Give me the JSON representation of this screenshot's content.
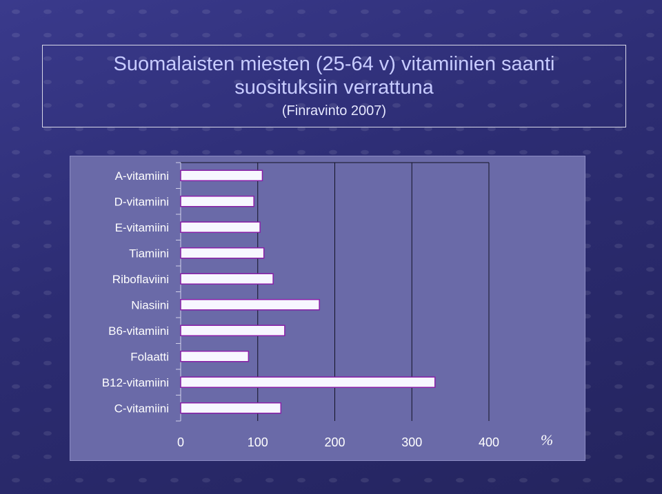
{
  "header": {
    "title_line1": "Suomalaisten miesten (25-64 v) vitamiinien saanti",
    "title_line2": "suosituksiin verrattuna",
    "subtitle": "(Finravinto 2007)"
  },
  "chart_data": {
    "type": "bar",
    "orientation": "horizontal",
    "categories": [
      "A-vitamiini",
      "D-vitamiini",
      "E-vitamiini",
      "Tiamiini",
      "Riboflaviini",
      "Niasiini",
      "B6-vitamiini",
      "Folaatti",
      "B12-vitamiini",
      "C-vitamiini"
    ],
    "values": [
      106,
      95,
      103,
      108,
      120,
      180,
      135,
      88,
      330,
      130
    ],
    "xlim": [
      0,
      400
    ],
    "xticks": [
      "0",
      "100",
      "200",
      "300",
      "400"
    ],
    "xunit": "%",
    "grid": "vertical",
    "colors": {
      "bar_fill": "#f7f7ff",
      "bar_stroke": "#8a1fa8",
      "gridline": "#111122",
      "plot_bg": "#6a6aa8"
    }
  }
}
